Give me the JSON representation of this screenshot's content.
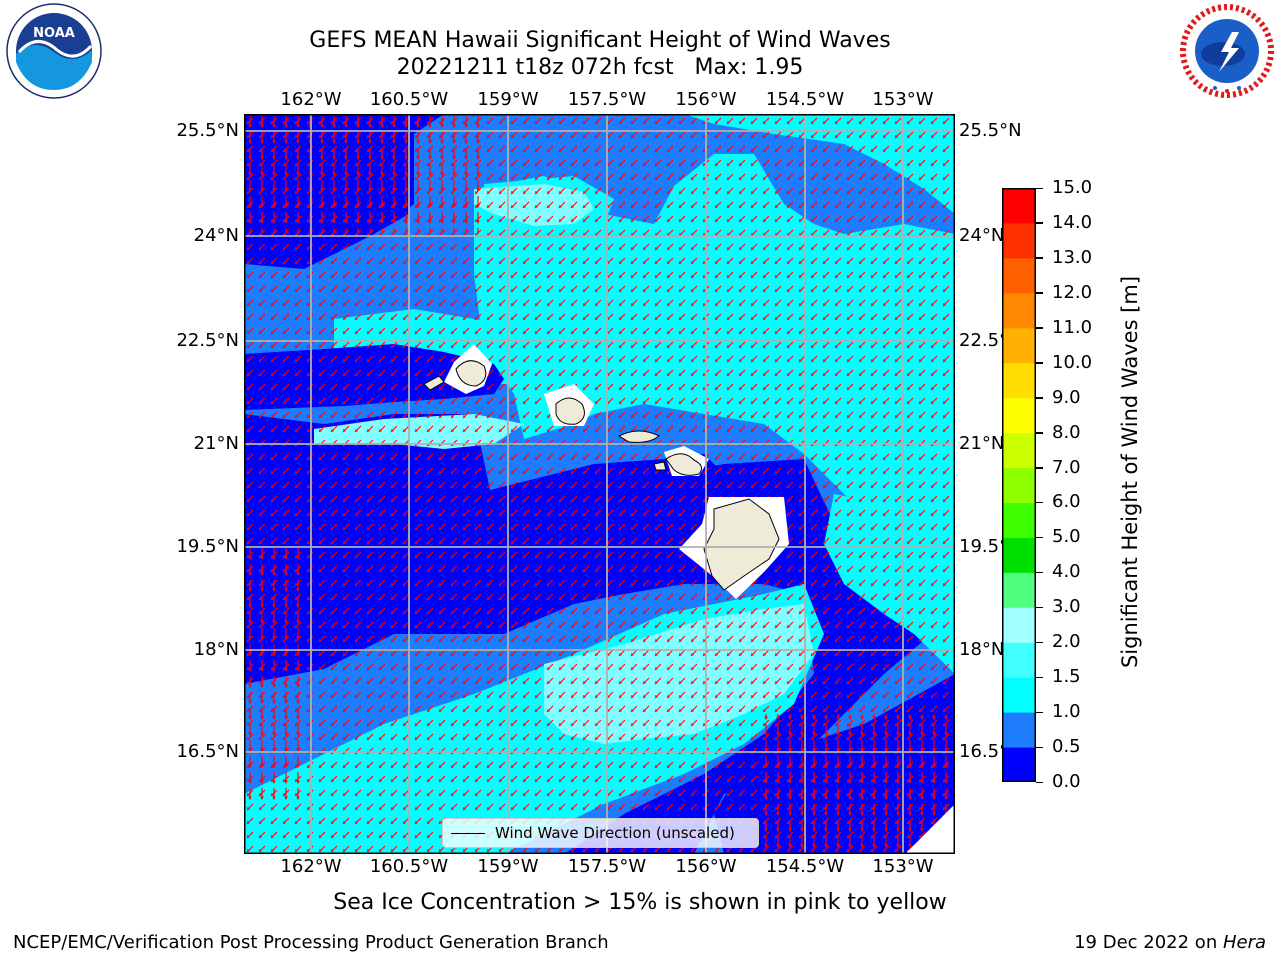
{
  "header": {
    "title_line1": "GEFS MEAN Hawaii Significant Height of Wind Waves",
    "title_line2": "20221211 t18z 072h fcst   Max: 1.95"
  },
  "logos": {
    "left": "NOAA",
    "left_ring_text": "NATIONAL OCEANIC AND ATMOSPHERIC ADMINISTRATION · U.S. DEPARTMENT OF COMMERCE",
    "right_ring_text": "NATIONAL WEATHER SERVICE"
  },
  "map": {
    "lon_ticks": [
      "162°W",
      "160.5°W",
      "159°W",
      "157.5°W",
      "156°W",
      "154.5°W",
      "153°W"
    ],
    "lat_ticks": [
      "25.5°N",
      "24°N",
      "22.5°N",
      "21°N",
      "19.5°N",
      "18°N",
      "16.5°N"
    ],
    "legend_label": "Wind Wave Direction (unscaled)",
    "colors": {
      "land": "#eeecd9",
      "arrows": "#ff0000",
      "grid": "#b0b0b0"
    }
  },
  "colorbar": {
    "label": "Significant Height of Wind Waves [m]",
    "ticks": [
      "0.0",
      "0.5",
      "1.0",
      "1.5",
      "2.0",
      "3.0",
      "4.0",
      "5.0",
      "6.0",
      "7.0",
      "8.0",
      "9.0",
      "10.0",
      "11.0",
      "12.0",
      "13.0",
      "14.0",
      "15.0"
    ],
    "colors": [
      "#0000ff",
      "#1e7cff",
      "#00ffff",
      "#40ffff",
      "#a0ffff",
      "#50ff80",
      "#00e000",
      "#40ff00",
      "#90ff00",
      "#ccff00",
      "#ffff00",
      "#ffdd00",
      "#ffb000",
      "#ff8800",
      "#ff6000",
      "#ff3000",
      "#ff0000"
    ]
  },
  "note": "Sea Ice Concentration > 15% is shown in pink to yellow",
  "footer": {
    "left": "NCEP/EMC/Verification Post Processing Product Generation Branch",
    "right_date": "19 Dec 2022 on ",
    "right_machine": "Hera"
  }
}
